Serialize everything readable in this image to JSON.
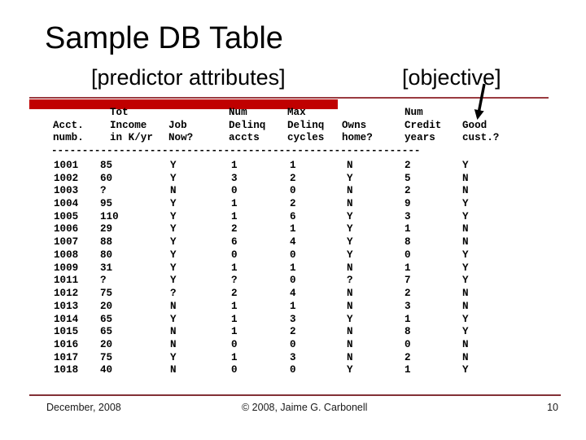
{
  "slide": {
    "title": "Sample DB Table",
    "predictor_label": "[predictor attributes]",
    "objective_label": "[objective]"
  },
  "table": {
    "header_lines": [
      [
        "",
        "Acct.",
        "numb."
      ],
      [
        "Tot",
        "Income",
        "in K/yr"
      ],
      [
        "",
        "Job",
        "Now?"
      ],
      [
        "Num",
        "Delinq",
        "accts"
      ],
      [
        "Max",
        "Delinq",
        "cycles"
      ],
      [
        "",
        "Owns",
        "home?"
      ],
      [
        "Num",
        "Credit",
        "years"
      ],
      [
        "",
        "Good",
        "cust.?"
      ]
    ],
    "separator": "------------------------------------------------------------",
    "rows": [
      [
        "1001",
        "85",
        "Y",
        "1",
        "1",
        "N",
        "2",
        "Y"
      ],
      [
        "1002",
        "60",
        "Y",
        "3",
        "2",
        "Y",
        "5",
        "N"
      ],
      [
        "1003",
        "?",
        "N",
        "0",
        "0",
        "N",
        "2",
        "N"
      ],
      [
        "1004",
        "95",
        "Y",
        "1",
        "2",
        "N",
        "9",
        "Y"
      ],
      [
        "1005",
        "110",
        "Y",
        "1",
        "6",
        "Y",
        "3",
        "Y"
      ],
      [
        "1006",
        "29",
        "Y",
        "2",
        "1",
        "Y",
        "1",
        "N"
      ],
      [
        "1007",
        "88",
        "Y",
        "6",
        "4",
        "Y",
        "8",
        "N"
      ],
      [
        "1008",
        "80",
        "Y",
        "0",
        "0",
        "Y",
        "0",
        "Y"
      ],
      [
        "1009",
        "31",
        "Y",
        "1",
        "1",
        "N",
        "1",
        "Y"
      ],
      [
        "1011",
        "?",
        "Y",
        "?",
        "0",
        "?",
        "7",
        "Y"
      ],
      [
        "1012",
        "75",
        "?",
        "2",
        "4",
        "N",
        "2",
        "N"
      ],
      [
        "1013",
        "20",
        "N",
        "1",
        "1",
        "N",
        "3",
        "N"
      ],
      [
        "1014",
        "65",
        "Y",
        "1",
        "3",
        "Y",
        "1",
        "Y"
      ],
      [
        "1015",
        "65",
        "N",
        "1",
        "2",
        "N",
        "8",
        "Y"
      ],
      [
        "1016",
        "20",
        "N",
        "0",
        "0",
        "N",
        "0",
        "N"
      ],
      [
        "1017",
        "75",
        "Y",
        "1",
        "3",
        "N",
        "2",
        "N"
      ],
      [
        "1018",
        "40",
        "N",
        "0",
        "0",
        "Y",
        "1",
        "Y"
      ]
    ]
  },
  "footer": {
    "date": "December, 2008",
    "copyright": "© 2008, Jaime G. Carbonell",
    "page_number": "10"
  },
  "colors": {
    "bar_red": "#c00000",
    "rule_maroon": "#9a3b40",
    "footer_rule": "#823036",
    "text": "#000000"
  }
}
